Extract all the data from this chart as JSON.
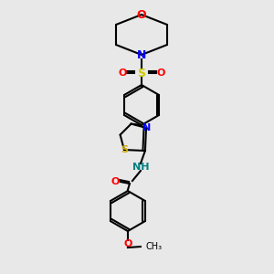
{
  "background_color": "#e8e8e8",
  "fig_width": 3.0,
  "fig_height": 3.0,
  "dpi": 100,
  "atom_colors": {
    "C": "#000000",
    "N": "#0000ff",
    "O": "#ff0000",
    "S": "#cccc00",
    "S_thiazole": "#ccaa00",
    "H": "#000000",
    "NH": "#008080"
  },
  "bond_color": "#000000",
  "bond_width": 1.5
}
